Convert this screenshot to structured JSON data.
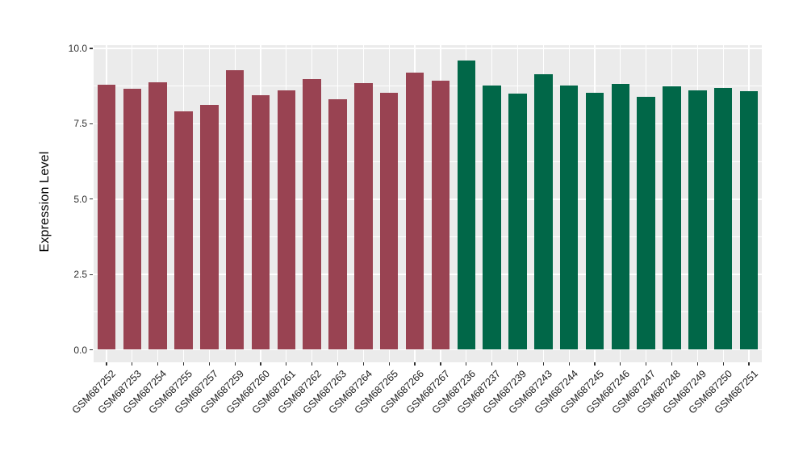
{
  "chart_data": {
    "type": "bar",
    "title": "",
    "ylabel": "Expression Level",
    "xlabel": "",
    "ylim": [
      0,
      10
    ],
    "y_major_ticks": [
      0,
      2.5,
      5,
      7.5,
      10
    ],
    "y_tick_labels": [
      "0.0",
      "2.5",
      "5.0",
      "7.5",
      "10.0"
    ],
    "y_minor_ticks": [
      1.25,
      3.75,
      6.25,
      8.75
    ],
    "grid": "white major and minor gridlines on gray panel",
    "legend": "none",
    "x_tick_angle_deg": 45,
    "categories": [
      "GSM687252",
      "GSM687253",
      "GSM687254",
      "GSM687255",
      "GSM687257",
      "GSM687259",
      "GSM687260",
      "GSM687261",
      "GSM687262",
      "GSM687263",
      "GSM687264",
      "GSM687265",
      "GSM687266",
      "GSM687267",
      "GSM687236",
      "GSM687237",
      "GSM687239",
      "GSM687243",
      "GSM687244",
      "GSM687245",
      "GSM687246",
      "GSM687247",
      "GSM687248",
      "GSM687249",
      "GSM687250",
      "GSM687251"
    ],
    "values": [
      8.8,
      8.65,
      8.88,
      7.92,
      8.12,
      9.27,
      8.46,
      8.62,
      8.97,
      8.3,
      8.84,
      8.53,
      9.2,
      8.93,
      9.6,
      8.76,
      8.49,
      9.13,
      8.76,
      8.53,
      8.81,
      8.39,
      8.73,
      8.61,
      8.68,
      8.59
    ],
    "bar_groups": [
      {
        "color": "#994352",
        "start_index": 0,
        "end_index": 13
      },
      {
        "color": "#016748",
        "start_index": 14,
        "end_index": 25
      }
    ],
    "colors": {
      "panel_background": "#ebebeb",
      "figure_background": "#ffffff",
      "gridline": "#ffffff",
      "tick_mark": "#333333",
      "axis_text": "#303030",
      "axis_title": "#000000"
    }
  }
}
